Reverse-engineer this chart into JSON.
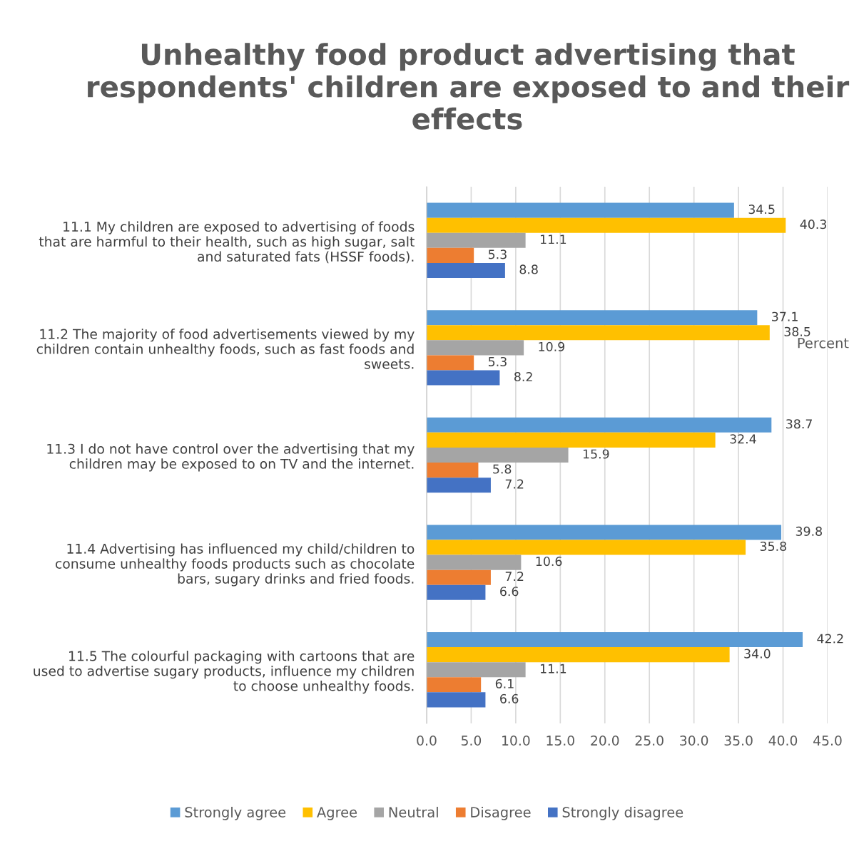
{
  "chart_data": {
    "type": "bar",
    "orientation": "horizontal",
    "title": "Unhealthy food product advertising that respondents' children are exposed to and their effects",
    "xlabel": "Percent",
    "categories": [
      "11.1 My children are exposed to advertising of foods\nthat are harmful to their health, such as high sugar, salt\nand saturated fats (HSSF foods).",
      "11.2 The majority of food advertisements viewed by my\nchildren contain unhealthy foods, such as fast foods and\nsweets.",
      "11.3 I do not have control over the advertising that my\nchildren may be exposed to on TV and the internet.",
      "11.4 Advertising has influenced my child/children to\nconsume unhealthy foods products such as chocolate\nbars, sugary drinks and fried foods.",
      "11.5 The colourful packaging with cartoons that are\nused to advertise sugary products, influence my children\nto choose unhealthy foods."
    ],
    "series": [
      {
        "name": "Strongly agree",
        "color": "#5b9bd5",
        "values": [
          34.5,
          37.1,
          38.7,
          39.8,
          42.2
        ],
        "value_labels": [
          "34.5",
          "37.1",
          "38.7",
          "39.8",
          "42.2"
        ]
      },
      {
        "name": "Agree",
        "color": "#ffc000",
        "values": [
          40.3,
          38.5,
          32.4,
          35.8,
          34.0
        ],
        "value_labels": [
          "40.3",
          "38.5",
          "32.4",
          "35.8",
          "34.0"
        ]
      },
      {
        "name": "Neutral",
        "color": "#a5a5a5",
        "values": [
          11.1,
          10.9,
          15.9,
          10.6,
          11.1
        ],
        "value_labels": [
          "11.1",
          "10.9",
          "15.9",
          "10.6",
          "11.1"
        ]
      },
      {
        "name": "Disagree",
        "color": "#ed7d31",
        "values": [
          5.3,
          5.3,
          5.8,
          7.2,
          6.1
        ],
        "value_labels": [
          "5.3",
          "5.3",
          "5.8",
          "7.2",
          "6.1"
        ]
      },
      {
        "name": "Strongly disagree",
        "color": "#4472c4",
        "values": [
          8.8,
          8.2,
          7.2,
          6.6,
          6.6
        ],
        "value_labels": [
          "8.8",
          "8.2",
          "7.2",
          "6.6",
          "6.6"
        ]
      }
    ],
    "xlim": [
      0,
      45
    ],
    "xticks": [
      {
        "value": 0,
        "label": "0.0"
      },
      {
        "value": 5,
        "label": "5.0"
      },
      {
        "value": 10,
        "label": "10.0"
      },
      {
        "value": 15,
        "label": "15.0"
      },
      {
        "value": 20,
        "label": "20.0"
      },
      {
        "value": 25,
        "label": "25.0"
      },
      {
        "value": 30,
        "label": "30.0"
      },
      {
        "value": 35,
        "label": "35.0"
      },
      {
        "value": 40,
        "label": "40.0"
      },
      {
        "value": 45,
        "label": "45.0"
      }
    ],
    "grid": "x",
    "legend": "bottom"
  }
}
